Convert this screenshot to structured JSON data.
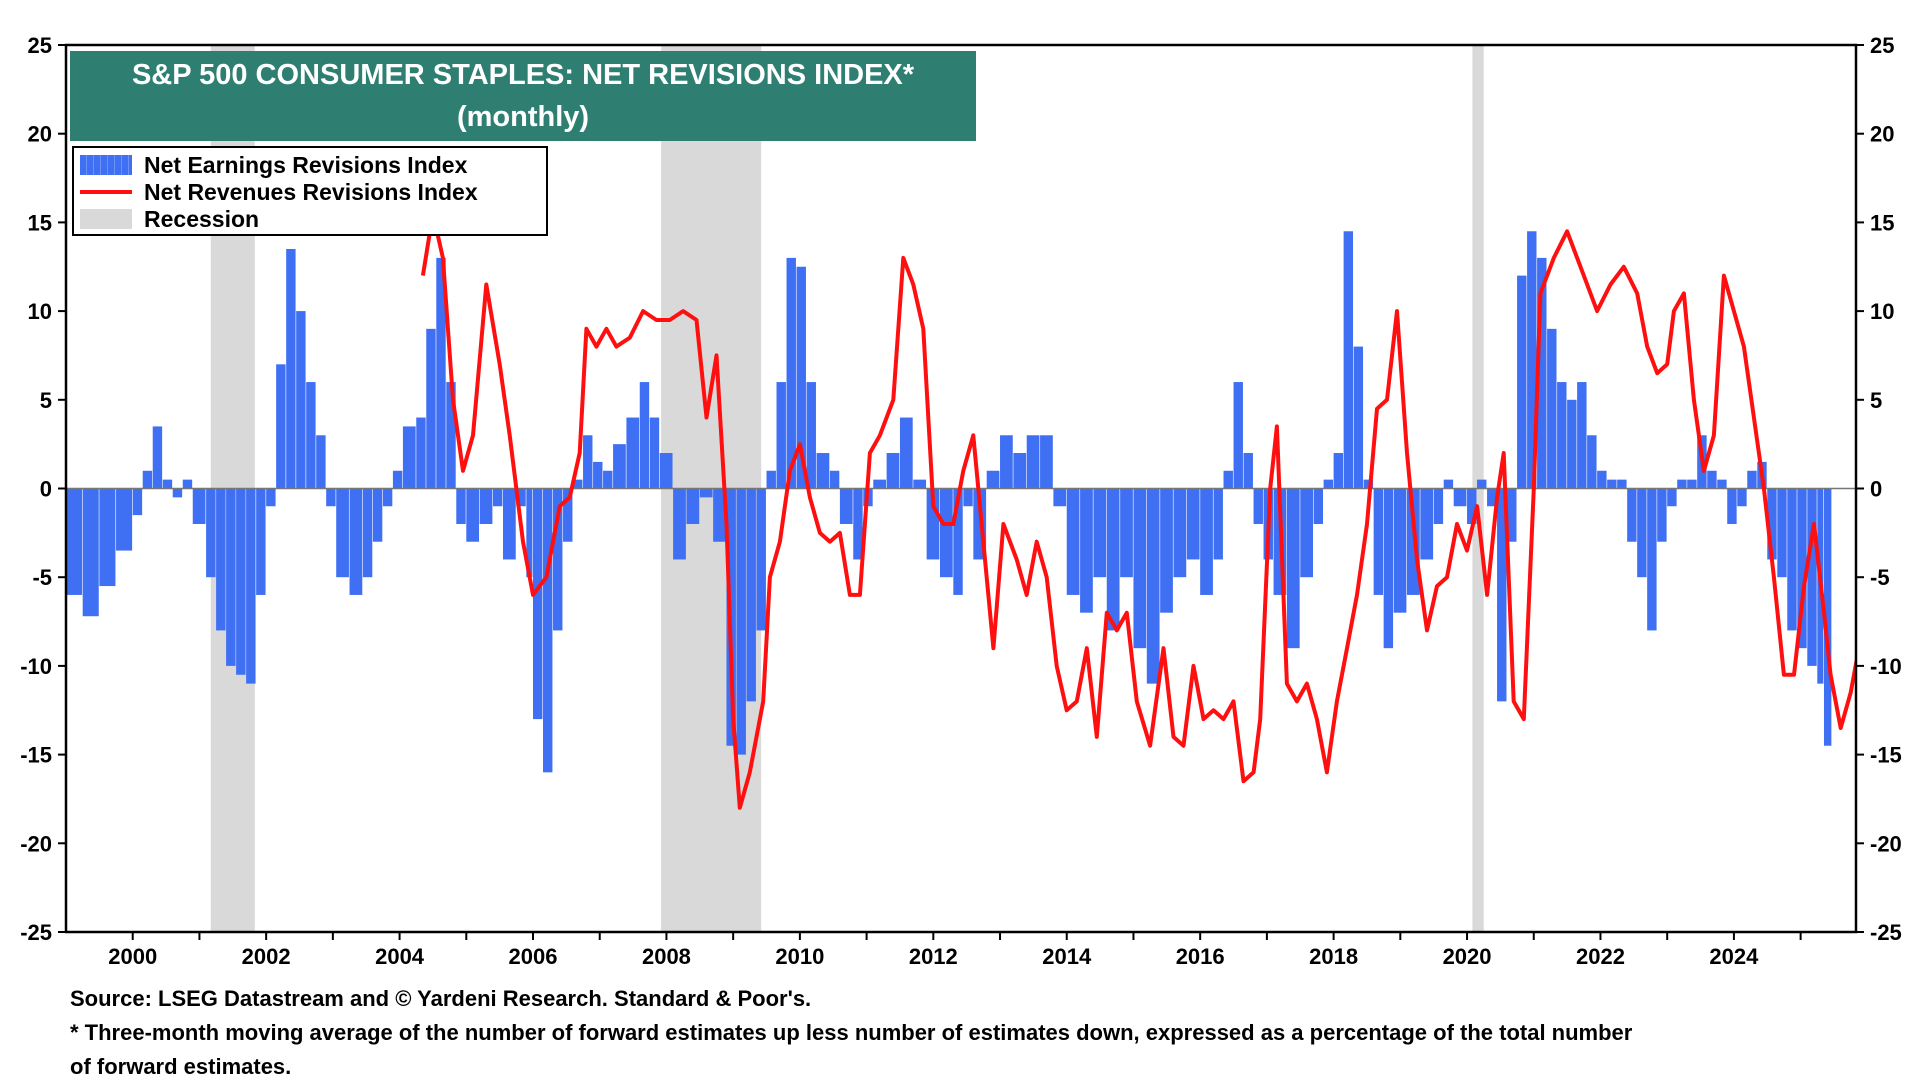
{
  "title": {
    "line1": "S&P 500 CONSUMER STAPLES: NET REVISIONS INDEX*",
    "line2": "(monthly)"
  },
  "legend": {
    "earnings": "Net Earnings Revisions Index",
    "revenues": "Net Revenues Revisions Index",
    "recession": "Recession"
  },
  "footnotes": {
    "source": "Source: LSEG Datastream and © Yardeni Research. Standard & Poor's.",
    "note_line1": "* Three-month moving average of the number of forward estimates up less number of estimates down, expressed as a percentage of the total number",
    "note_line2": " of forward estimates."
  },
  "colors": {
    "earnings": "#3f6ff2",
    "revenues": "#ff1010",
    "recession": "#d9d9d9",
    "title_bg": "#2e7f72"
  },
  "chart_data": {
    "type": "bar",
    "ylim": [
      -25,
      25
    ],
    "xlim": [
      1999.0,
      2025.83
    ],
    "y_ticks": [
      "-25",
      "-20",
      "-15",
      "-10",
      "-5",
      "0",
      "5",
      "10",
      "15",
      "20",
      "25"
    ],
    "x_ticks": [
      "2000",
      "2002",
      "2004",
      "2006",
      "2008",
      "2010",
      "2012",
      "2014",
      "2016",
      "2018",
      "2020",
      "2022",
      "2024"
    ],
    "recessions": [
      [
        2001.17,
        2001.83
      ],
      [
        2007.92,
        2009.42
      ],
      [
        2020.08,
        2020.25
      ]
    ],
    "series": [
      {
        "name": "Net Earnings Revisions Index",
        "kind": "bar",
        "points": [
          [
            1999.0,
            -6
          ],
          [
            1999.25,
            -7.2
          ],
          [
            1999.5,
            -5.5
          ],
          [
            1999.75,
            -3.5
          ],
          [
            2000.0,
            -1.5
          ],
          [
            2000.15,
            1
          ],
          [
            2000.3,
            3.5
          ],
          [
            2000.45,
            0.5
          ],
          [
            2000.6,
            -0.5
          ],
          [
            2000.75,
            0.5
          ],
          [
            2000.9,
            -2
          ],
          [
            2001.1,
            -5
          ],
          [
            2001.25,
            -8
          ],
          [
            2001.4,
            -10
          ],
          [
            2001.55,
            -10.5
          ],
          [
            2001.7,
            -11
          ],
          [
            2001.85,
            -6
          ],
          [
            2002.0,
            -1
          ],
          [
            2002.15,
            7
          ],
          [
            2002.3,
            13.5
          ],
          [
            2002.45,
            10
          ],
          [
            2002.6,
            6
          ],
          [
            2002.75,
            3
          ],
          [
            2002.9,
            -1
          ],
          [
            2003.05,
            -5
          ],
          [
            2003.25,
            -6
          ],
          [
            2003.45,
            -5
          ],
          [
            2003.6,
            -3
          ],
          [
            2003.75,
            -1
          ],
          [
            2003.9,
            1
          ],
          [
            2004.05,
            3.5
          ],
          [
            2004.25,
            4
          ],
          [
            2004.4,
            9
          ],
          [
            2004.55,
            13
          ],
          [
            2004.7,
            6
          ],
          [
            2004.85,
            -2
          ],
          [
            2005.0,
            -3
          ],
          [
            2005.2,
            -2
          ],
          [
            2005.4,
            -1
          ],
          [
            2005.55,
            -4
          ],
          [
            2005.75,
            -1
          ],
          [
            2005.9,
            -5
          ],
          [
            2006.0,
            -13
          ],
          [
            2006.15,
            -16
          ],
          [
            2006.3,
            -8
          ],
          [
            2006.45,
            -3
          ],
          [
            2006.6,
            0.5
          ],
          [
            2006.75,
            3
          ],
          [
            2006.9,
            1.5
          ],
          [
            2007.05,
            1
          ],
          [
            2007.2,
            2.5
          ],
          [
            2007.4,
            4
          ],
          [
            2007.6,
            6
          ],
          [
            2007.75,
            4
          ],
          [
            2007.9,
            2
          ],
          [
            2008.1,
            -4
          ],
          [
            2008.3,
            -2
          ],
          [
            2008.5,
            -0.5
          ],
          [
            2008.7,
            -3
          ],
          [
            2008.9,
            -14.5
          ],
          [
            2009.05,
            -15
          ],
          [
            2009.2,
            -12
          ],
          [
            2009.35,
            -8
          ],
          [
            2009.5,
            1
          ],
          [
            2009.65,
            6
          ],
          [
            2009.8,
            13
          ],
          [
            2009.95,
            12.5
          ],
          [
            2010.1,
            6
          ],
          [
            2010.25,
            2
          ],
          [
            2010.45,
            1
          ],
          [
            2010.6,
            -2
          ],
          [
            2010.8,
            -4
          ],
          [
            2010.95,
            -1
          ],
          [
            2011.1,
            0.5
          ],
          [
            2011.3,
            2
          ],
          [
            2011.5,
            4
          ],
          [
            2011.7,
            0.5
          ],
          [
            2011.9,
            -4
          ],
          [
            2012.1,
            -5
          ],
          [
            2012.3,
            -6
          ],
          [
            2012.45,
            -1
          ],
          [
            2012.6,
            -4
          ],
          [
            2012.8,
            1
          ],
          [
            2013.0,
            3
          ],
          [
            2013.2,
            2
          ],
          [
            2013.4,
            3
          ],
          [
            2013.6,
            3
          ],
          [
            2013.8,
            -1
          ],
          [
            2014.0,
            -6
          ],
          [
            2014.2,
            -7
          ],
          [
            2014.4,
            -5
          ],
          [
            2014.6,
            -8
          ],
          [
            2014.8,
            -5
          ],
          [
            2015.0,
            -9
          ],
          [
            2015.2,
            -11
          ],
          [
            2015.4,
            -7
          ],
          [
            2015.6,
            -5
          ],
          [
            2015.8,
            -4
          ],
          [
            2016.0,
            -6
          ],
          [
            2016.2,
            -4
          ],
          [
            2016.35,
            1
          ],
          [
            2016.5,
            6
          ],
          [
            2016.65,
            2
          ],
          [
            2016.8,
            -2
          ],
          [
            2016.95,
            -4
          ],
          [
            2017.1,
            -6
          ],
          [
            2017.3,
            -9
          ],
          [
            2017.5,
            -5
          ],
          [
            2017.7,
            -2
          ],
          [
            2017.85,
            0.5
          ],
          [
            2018.0,
            2
          ],
          [
            2018.15,
            14.5
          ],
          [
            2018.3,
            8
          ],
          [
            2018.45,
            0.5
          ],
          [
            2018.6,
            -6
          ],
          [
            2018.75,
            -9
          ],
          [
            2018.9,
            -7
          ],
          [
            2019.1,
            -6
          ],
          [
            2019.3,
            -4
          ],
          [
            2019.5,
            -2
          ],
          [
            2019.65,
            0.5
          ],
          [
            2019.8,
            -1
          ],
          [
            2020.0,
            -2
          ],
          [
            2020.15,
            0.5
          ],
          [
            2020.3,
            -1
          ],
          [
            2020.45,
            -12
          ],
          [
            2020.6,
            -3
          ],
          [
            2020.75,
            12
          ],
          [
            2020.9,
            14.5
          ],
          [
            2021.05,
            13
          ],
          [
            2021.2,
            9
          ],
          [
            2021.35,
            6
          ],
          [
            2021.5,
            5
          ],
          [
            2021.65,
            6
          ],
          [
            2021.8,
            3
          ],
          [
            2021.95,
            1
          ],
          [
            2022.1,
            0.5
          ],
          [
            2022.25,
            0.5
          ],
          [
            2022.4,
            -3
          ],
          [
            2022.55,
            -5
          ],
          [
            2022.7,
            -8
          ],
          [
            2022.85,
            -3
          ],
          [
            2023.0,
            -1
          ],
          [
            2023.15,
            0.5
          ],
          [
            2023.3,
            0.5
          ],
          [
            2023.45,
            3
          ],
          [
            2023.6,
            1
          ],
          [
            2023.75,
            0.5
          ],
          [
            2023.9,
            -2
          ],
          [
            2024.05,
            -1
          ],
          [
            2024.2,
            1
          ],
          [
            2024.35,
            1.5
          ],
          [
            2024.5,
            -4
          ],
          [
            2024.65,
            -5
          ],
          [
            2024.8,
            -8
          ],
          [
            2024.95,
            -9
          ],
          [
            2025.1,
            -10
          ],
          [
            2025.25,
            -11
          ],
          [
            2025.35,
            -14.5
          ]
        ]
      },
      {
        "name": "Net Revenues Revisions Index",
        "kind": "line",
        "points": [
          [
            2004.35,
            12
          ],
          [
            2004.5,
            15.5
          ],
          [
            2004.65,
            13
          ],
          [
            2004.8,
            5
          ],
          [
            2004.95,
            1
          ],
          [
            2005.1,
            3
          ],
          [
            2005.3,
            11.5
          ],
          [
            2005.5,
            7
          ],
          [
            2005.65,
            3
          ],
          [
            2005.85,
            -3
          ],
          [
            2006.0,
            -6
          ],
          [
            2006.2,
            -5
          ],
          [
            2006.4,
            -1
          ],
          [
            2006.55,
            -0.5
          ],
          [
            2006.7,
            2
          ],
          [
            2006.8,
            9
          ],
          [
            2006.95,
            8
          ],
          [
            2007.1,
            9
          ],
          [
            2007.25,
            8
          ],
          [
            2007.45,
            8.5
          ],
          [
            2007.65,
            10
          ],
          [
            2007.85,
            9.5
          ],
          [
            2008.05,
            9.5
          ],
          [
            2008.25,
            10
          ],
          [
            2008.45,
            9.5
          ],
          [
            2008.6,
            4
          ],
          [
            2008.75,
            7.5
          ],
          [
            2008.9,
            -2
          ],
          [
            2009.0,
            -13
          ],
          [
            2009.1,
            -18
          ],
          [
            2009.25,
            -16
          ],
          [
            2009.45,
            -12
          ],
          [
            2009.55,
            -5
          ],
          [
            2009.7,
            -3
          ],
          [
            2009.85,
            1
          ],
          [
            2010.0,
            2.5
          ],
          [
            2010.15,
            -0.5
          ],
          [
            2010.3,
            -2.5
          ],
          [
            2010.45,
            -3
          ],
          [
            2010.6,
            -2.5
          ],
          [
            2010.75,
            -6
          ],
          [
            2010.9,
            -6
          ],
          [
            2011.05,
            2
          ],
          [
            2011.2,
            3
          ],
          [
            2011.4,
            5
          ],
          [
            2011.55,
            13
          ],
          [
            2011.7,
            11.5
          ],
          [
            2011.85,
            9
          ],
          [
            2012.0,
            -1
          ],
          [
            2012.15,
            -2
          ],
          [
            2012.3,
            -2
          ],
          [
            2012.45,
            1
          ],
          [
            2012.6,
            3
          ],
          [
            2012.75,
            -3
          ],
          [
            2012.9,
            -9
          ],
          [
            2013.05,
            -2
          ],
          [
            2013.25,
            -4
          ],
          [
            2013.4,
            -6
          ],
          [
            2013.55,
            -3
          ],
          [
            2013.7,
            -5
          ],
          [
            2013.85,
            -10
          ],
          [
            2014.0,
            -12.5
          ],
          [
            2014.15,
            -12
          ],
          [
            2014.3,
            -9
          ],
          [
            2014.45,
            -14
          ],
          [
            2014.6,
            -7
          ],
          [
            2014.75,
            -8
          ],
          [
            2014.9,
            -7
          ],
          [
            2015.05,
            -12
          ],
          [
            2015.25,
            -14.5
          ],
          [
            2015.45,
            -9
          ],
          [
            2015.6,
            -14
          ],
          [
            2015.75,
            -14.5
          ],
          [
            2015.9,
            -10
          ],
          [
            2016.05,
            -13
          ],
          [
            2016.2,
            -12.5
          ],
          [
            2016.35,
            -13
          ],
          [
            2016.5,
            -12
          ],
          [
            2016.65,
            -16.5
          ],
          [
            2016.8,
            -16
          ],
          [
            2016.9,
            -13
          ],
          [
            2017.05,
            0
          ],
          [
            2017.15,
            3.5
          ],
          [
            2017.3,
            -11
          ],
          [
            2017.45,
            -12
          ],
          [
            2017.6,
            -11
          ],
          [
            2017.75,
            -13
          ],
          [
            2017.9,
            -16
          ],
          [
            2018.05,
            -12
          ],
          [
            2018.2,
            -9
          ],
          [
            2018.35,
            -6
          ],
          [
            2018.5,
            -2
          ],
          [
            2018.65,
            4.5
          ],
          [
            2018.8,
            5
          ],
          [
            2018.95,
            10
          ],
          [
            2019.1,
            2
          ],
          [
            2019.25,
            -4
          ],
          [
            2019.4,
            -8
          ],
          [
            2019.55,
            -5.5
          ],
          [
            2019.7,
            -5
          ],
          [
            2019.85,
            -2
          ],
          [
            2020.0,
            -3.5
          ],
          [
            2020.15,
            -1
          ],
          [
            2020.3,
            -6
          ],
          [
            2020.45,
            -0.5
          ],
          [
            2020.55,
            2
          ],
          [
            2020.7,
            -12
          ],
          [
            2020.85,
            -13
          ],
          [
            2021.0,
            0
          ],
          [
            2021.1,
            11
          ],
          [
            2021.3,
            13
          ],
          [
            2021.5,
            14.5
          ],
          [
            2021.75,
            12
          ],
          [
            2021.95,
            10
          ],
          [
            2022.15,
            11.5
          ],
          [
            2022.35,
            12.5
          ],
          [
            2022.55,
            11
          ],
          [
            2022.7,
            8
          ],
          [
            2022.85,
            6.5
          ],
          [
            2023.0,
            7
          ],
          [
            2023.1,
            10
          ],
          [
            2023.25,
            11
          ],
          [
            2023.4,
            5
          ],
          [
            2023.55,
            1
          ],
          [
            2023.7,
            3
          ],
          [
            2023.85,
            12
          ],
          [
            2024.0,
            10
          ],
          [
            2024.15,
            8
          ],
          [
            2024.3,
            4
          ],
          [
            2024.45,
            0
          ],
          [
            2024.6,
            -5
          ],
          [
            2024.75,
            -10.5
          ],
          [
            2024.9,
            -10.5
          ],
          [
            2025.05,
            -5.5
          ],
          [
            2025.2,
            -2
          ],
          [
            2025.35,
            -7
          ],
          [
            2025.45,
            -10.5
          ],
          [
            2025.6,
            -13.5
          ],
          [
            2025.75,
            -11.5
          ],
          [
            2025.85,
            -9.5
          ],
          [
            2025.95,
            -10
          ],
          [
            2026.05,
            -10.5
          ],
          [
            2026.15,
            -10
          ]
        ]
      }
    ]
  }
}
